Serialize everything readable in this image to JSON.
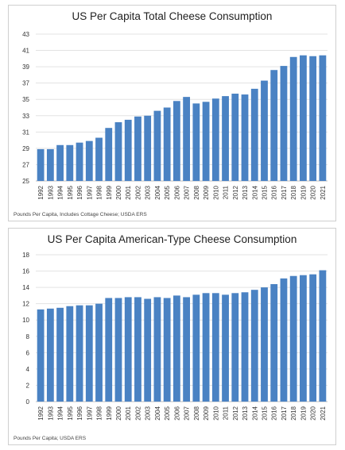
{
  "chart_data": [
    {
      "type": "bar",
      "title": "US Per Capita Total Cheese Consumption",
      "source": "Pounds Per Capita, Includes Cottage Cheese; USDA ERS",
      "categories": [
        "1992",
        "1993",
        "1994",
        "1995",
        "1996",
        "1997",
        "1998",
        "1999",
        "2000",
        "2001",
        "2002",
        "2003",
        "2004",
        "2005",
        "2006",
        "2007",
        "2008",
        "2009",
        "2010",
        "2011",
        "2012",
        "2013",
        "2014",
        "2015",
        "2016",
        "2017",
        "2018",
        "2019",
        "2020",
        "2021"
      ],
      "values": [
        28.9,
        28.9,
        29.4,
        29.4,
        29.7,
        29.9,
        30.3,
        31.5,
        32.2,
        32.5,
        32.9,
        33.0,
        33.6,
        34.0,
        34.8,
        35.3,
        34.5,
        34.7,
        35.1,
        35.4,
        35.7,
        35.6,
        36.3,
        37.3,
        38.6,
        39.1,
        40.2,
        40.4,
        40.3,
        40.4
      ],
      "ylim": [
        25,
        43
      ],
      "yticks": [
        "25",
        "27",
        "29",
        "31",
        "33",
        "35",
        "37",
        "39",
        "41",
        "43"
      ],
      "xlabel": "",
      "ylabel": "",
      "grid": true,
      "bar_color": "#4a82c3"
    },
    {
      "type": "bar",
      "title": "US Per Capita American-Type Cheese Consumption",
      "source": "Pounds Per Capita; USDA ERS",
      "categories": [
        "1992",
        "1993",
        "1994",
        "1995",
        "1996",
        "1997",
        "1998",
        "1999",
        "2000",
        "2001",
        "2002",
        "2003",
        "2004",
        "2005",
        "2006",
        "2007",
        "2008",
        "2009",
        "2010",
        "2011",
        "2012",
        "2013",
        "2014",
        "2015",
        "2016",
        "2017",
        "2018",
        "2019",
        "2020",
        "2021"
      ],
      "values": [
        11.3,
        11.4,
        11.5,
        11.7,
        11.8,
        11.8,
        12.0,
        12.7,
        12.7,
        12.8,
        12.8,
        12.6,
        12.8,
        12.7,
        13.0,
        12.8,
        13.1,
        13.3,
        13.3,
        13.1,
        13.3,
        13.4,
        13.7,
        14.0,
        14.4,
        15.1,
        15.4,
        15.5,
        15.6,
        16.1
      ],
      "ylim": [
        0,
        18
      ],
      "yticks": [
        "0",
        "2",
        "4",
        "6",
        "8",
        "10",
        "12",
        "14",
        "16",
        "18"
      ],
      "xlabel": "",
      "ylabel": "",
      "grid": true,
      "bar_color": "#4a82c3"
    }
  ]
}
